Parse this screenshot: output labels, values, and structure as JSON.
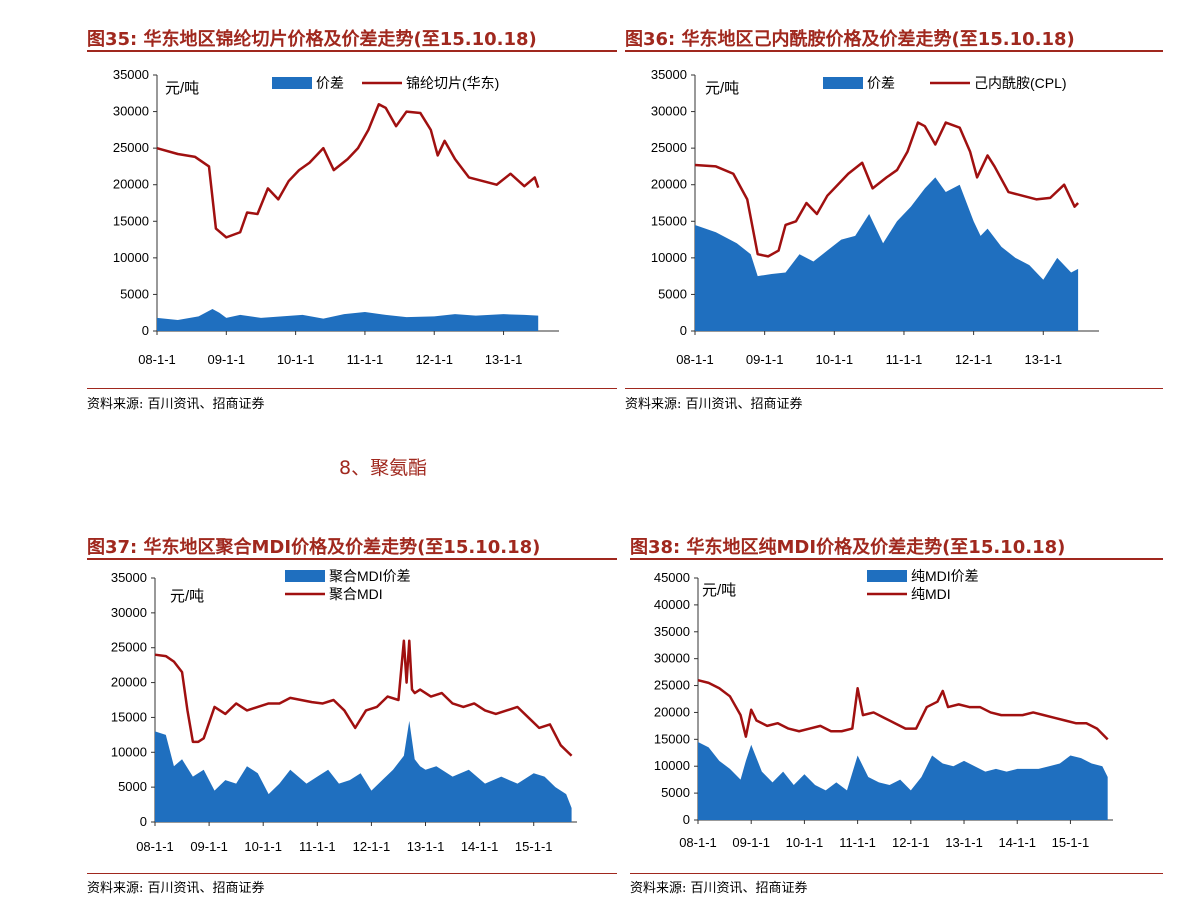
{
  "panels": [
    {
      "id": "fig35",
      "title": "图35:  华东地区锦纶切片价格及价差走势(至15.10.18)",
      "source": "资料来源:  百川资讯、招商证券",
      "unit_label": "元/吨",
      "chart_data": {
        "type": "area",
        "title": "图35:  华东地区锦纶切片价格及价差走势(至15.10.18)",
        "ylabel": "元/吨",
        "ylim": [
          0,
          35000
        ],
        "yticks": [
          0,
          5000,
          10000,
          15000,
          20000,
          25000,
          30000,
          35000
        ],
        "xticks": [
          "08-1-1",
          "09-1-1",
          "10-1-1",
          "11-1-1",
          "12-1-1",
          "13-1-1"
        ],
        "xrange": [
          0,
          5.8
        ],
        "legend": "top",
        "series": [
          {
            "name": "价差",
            "kind": "area",
            "color": "#1f6fbf",
            "x": [
              0,
              0.3,
              0.6,
              0.8,
              0.9,
              1.0,
              1.2,
              1.5,
              1.8,
              2.1,
              2.4,
              2.7,
              3.0,
              3.3,
              3.6,
              4.0,
              4.3,
              4.6,
              5.0,
              5.3,
              5.5
            ],
            "y": [
              1800,
              1500,
              2000,
              3000,
              2500,
              1800,
              2200,
              1800,
              2000,
              2200,
              1700,
              2300,
              2600,
              2200,
              1900,
              2000,
              2300,
              2100,
              2300,
              2200,
              2100
            ]
          },
          {
            "name": "锦纶切片(华东)",
            "kind": "line",
            "color": "#a01010",
            "x": [
              0,
              0.3,
              0.55,
              0.75,
              0.85,
              1.0,
              1.2,
              1.3,
              1.45,
              1.6,
              1.75,
              1.9,
              2.05,
              2.2,
              2.4,
              2.55,
              2.75,
              2.9,
              3.05,
              3.2,
              3.3,
              3.45,
              3.6,
              3.8,
              3.95,
              4.05,
              4.15,
              4.3,
              4.5,
              4.7,
              4.9,
              5.1,
              5.3,
              5.45,
              5.5
            ],
            "y": [
              25000,
              24200,
              23800,
              22500,
              14000,
              12800,
              13500,
              16200,
              16000,
              19500,
              18000,
              20500,
              22000,
              23000,
              25000,
              22000,
              23500,
              25000,
              27500,
              31000,
              30500,
              28000,
              30000,
              29800,
              27500,
              24000,
              26000,
              23500,
              21000,
              20500,
              20000,
              21500,
              19800,
              21000,
              19600
            ]
          }
        ]
      }
    },
    {
      "id": "fig36",
      "title": "图36:  华东地区己内酰胺价格及价差走势(至15.10.18)",
      "source": "资料来源:  百川资讯、招商证券",
      "unit_label": "元/吨",
      "chart_data": {
        "type": "area",
        "title": "图36:  华东地区己内酰胺价格及价差走势(至15.10.18)",
        "ylabel": "元/吨",
        "ylim": [
          0,
          35000
        ],
        "yticks": [
          0,
          5000,
          10000,
          15000,
          20000,
          25000,
          30000,
          35000
        ],
        "xticks": [
          "08-1-1",
          "09-1-1",
          "10-1-1",
          "11-1-1",
          "12-1-1",
          "13-1-1"
        ],
        "xrange": [
          0,
          5.8
        ],
        "legend": "top",
        "series": [
          {
            "name": "价差",
            "kind": "area",
            "color": "#1f6fbf",
            "x": [
              0,
              0.3,
              0.6,
              0.8,
              0.9,
              1.1,
              1.3,
              1.5,
              1.7,
              1.9,
              2.1,
              2.3,
              2.5,
              2.7,
              2.9,
              3.1,
              3.3,
              3.45,
              3.6,
              3.8,
              4.0,
              4.1,
              4.2,
              4.4,
              4.6,
              4.8,
              5.0,
              5.2,
              5.4,
              5.5
            ],
            "y": [
              14500,
              13500,
              12000,
              10500,
              7500,
              7800,
              8000,
              10500,
              9500,
              11000,
              12500,
              13000,
              16000,
              12000,
              15000,
              17000,
              19500,
              21000,
              19000,
              20000,
              15000,
              13000,
              14000,
              11500,
              10000,
              9000,
              7000,
              10000,
              8000,
              8500
            ]
          },
          {
            "name": "己内酰胺(CPL)",
            "kind": "line",
            "color": "#a01010",
            "x": [
              0,
              0.3,
              0.55,
              0.75,
              0.9,
              1.05,
              1.2,
              1.3,
              1.45,
              1.6,
              1.75,
              1.9,
              2.05,
              2.2,
              2.4,
              2.55,
              2.75,
              2.9,
              3.05,
              3.2,
              3.3,
              3.45,
              3.6,
              3.8,
              3.95,
              4.05,
              4.2,
              4.3,
              4.5,
              4.7,
              4.9,
              5.1,
              5.3,
              5.45,
              5.5
            ],
            "y": [
              22700,
              22500,
              21500,
              18000,
              10500,
              10200,
              11000,
              14500,
              15000,
              17500,
              16000,
              18500,
              20000,
              21500,
              23000,
              19500,
              21000,
              22000,
              24500,
              28500,
              28000,
              25500,
              28500,
              27800,
              24500,
              21000,
              24000,
              22500,
              19000,
              18500,
              18000,
              18200,
              20000,
              17000,
              17500
            ]
          }
        ]
      }
    },
    {
      "id": "fig37",
      "title": "图37:  华东地区聚合MDI价格及价差走势(至15.10.18)",
      "source": "资料来源:  百川资讯、招商证券",
      "unit_label": "元/吨",
      "chart_data": {
        "type": "area",
        "title": "图37:  华东地区聚合MDI价格及价差走势(至15.10.18)",
        "ylabel": "元/吨",
        "ylim": [
          0,
          35000
        ],
        "yticks": [
          0,
          5000,
          10000,
          15000,
          20000,
          25000,
          30000,
          35000
        ],
        "xticks": [
          "08-1-1",
          "09-1-1",
          "10-1-1",
          "11-1-1",
          "12-1-1",
          "13-1-1",
          "14-1-1",
          "15-1-1"
        ],
        "xrange": [
          0,
          7.8
        ],
        "legend": "top",
        "series": [
          {
            "name": "聚合MDI价差",
            "kind": "area",
            "color": "#1f6fbf",
            "x": [
              0,
              0.2,
              0.35,
              0.5,
              0.7,
              0.9,
              1.1,
              1.3,
              1.5,
              1.7,
              1.9,
              2.1,
              2.3,
              2.5,
              2.8,
              3.0,
              3.2,
              3.4,
              3.6,
              3.8,
              4.0,
              4.2,
              4.4,
              4.6,
              4.7,
              4.8,
              4.9,
              5.0,
              5.2,
              5.5,
              5.8,
              6.1,
              6.4,
              6.7,
              7.0,
              7.2,
              7.4,
              7.6,
              7.7
            ],
            "y": [
              13000,
              12500,
              8000,
              9000,
              6500,
              7500,
              4500,
              6000,
              5500,
              8000,
              7000,
              4000,
              5500,
              7500,
              5500,
              6500,
              7500,
              5500,
              6000,
              7000,
              4500,
              6000,
              7500,
              9500,
              14500,
              9000,
              8000,
              7500,
              8000,
              6500,
              7500,
              5500,
              6500,
              5500,
              7000,
              6500,
              5000,
              4000,
              2000
            ]
          },
          {
            "name": "聚合MDI",
            "kind": "line",
            "color": "#a01010",
            "x": [
              0,
              0.2,
              0.35,
              0.5,
              0.6,
              0.7,
              0.8,
              0.9,
              1.1,
              1.3,
              1.5,
              1.7,
              1.9,
              2.1,
              2.3,
              2.5,
              2.7,
              2.9,
              3.1,
              3.3,
              3.5,
              3.7,
              3.9,
              4.1,
              4.3,
              4.5,
              4.6,
              4.65,
              4.7,
              4.75,
              4.8,
              4.9,
              5.1,
              5.3,
              5.5,
              5.7,
              5.9,
              6.1,
              6.3,
              6.5,
              6.7,
              6.9,
              7.1,
              7.3,
              7.5,
              7.7
            ],
            "y": [
              24000,
              23800,
              23000,
              21500,
              16000,
              11500,
              11500,
              12000,
              16500,
              15500,
              17000,
              16000,
              16500,
              17000,
              17000,
              17800,
              17500,
              17200,
              17000,
              17500,
              16000,
              13500,
              16000,
              16500,
              18000,
              17500,
              26000,
              20000,
              26000,
              19000,
              18500,
              19000,
              18000,
              18500,
              17000,
              16500,
              17000,
              16000,
              15500,
              16000,
              16500,
              15000,
              13500,
              14000,
              11000,
              9500
            ]
          }
        ]
      }
    },
    {
      "id": "fig38",
      "title": "图38:  华东地区纯MDI价格及价差走势(至15.10.18)",
      "source": "资料来源:  百川资讯、招商证券",
      "unit_label": "元/吨",
      "chart_data": {
        "type": "area",
        "title": "图38:  华东地区纯MDI价格及价差走势(至15.10.18)",
        "ylabel": "元/吨",
        "ylim": [
          0,
          45000
        ],
        "yticks": [
          0,
          5000,
          10000,
          15000,
          20000,
          25000,
          30000,
          35000,
          40000,
          45000
        ],
        "xticks": [
          "08-1-1",
          "09-1-1",
          "10-1-1",
          "11-1-1",
          "12-1-1",
          "13-1-1",
          "14-1-1",
          "15-1-1"
        ],
        "xrange": [
          0,
          7.8
        ],
        "legend": "top",
        "series": [
          {
            "name": "纯MDI价差",
            "kind": "area",
            "color": "#1f6fbf",
            "x": [
              0,
              0.2,
              0.4,
              0.6,
              0.8,
              0.9,
              1.0,
              1.2,
              1.4,
              1.6,
              1.8,
              2.0,
              2.2,
              2.4,
              2.6,
              2.8,
              3.0,
              3.2,
              3.4,
              3.6,
              3.8,
              4.0,
              4.2,
              4.4,
              4.6,
              4.8,
              5.0,
              5.2,
              5.4,
              5.6,
              5.8,
              6.0,
              6.2,
              6.4,
              6.6,
              6.8,
              7.0,
              7.2,
              7.4,
              7.6,
              7.7
            ],
            "y": [
              14500,
              13500,
              11000,
              9500,
              7500,
              11000,
              14000,
              9000,
              7000,
              9000,
              6500,
              8500,
              6500,
              5500,
              7000,
              5500,
              12000,
              8000,
              7000,
              6500,
              7500,
              5500,
              8000,
              12000,
              10500,
              10000,
              11000,
              10000,
              9000,
              9500,
              9000,
              9500,
              9500,
              9500,
              10000,
              10500,
              12000,
              11500,
              10500,
              10000,
              8000
            ]
          },
          {
            "name": "纯MDI",
            "kind": "line",
            "color": "#a01010",
            "x": [
              0,
              0.2,
              0.4,
              0.6,
              0.8,
              0.9,
              1.0,
              1.1,
              1.3,
              1.5,
              1.7,
              1.9,
              2.1,
              2.3,
              2.5,
              2.7,
              2.9,
              3.0,
              3.1,
              3.3,
              3.5,
              3.7,
              3.9,
              4.1,
              4.3,
              4.5,
              4.6,
              4.7,
              4.9,
              5.1,
              5.3,
              5.5,
              5.7,
              5.9,
              6.1,
              6.3,
              6.5,
              6.7,
              6.9,
              7.1,
              7.3,
              7.5,
              7.7
            ],
            "y": [
              26000,
              25500,
              24500,
              23000,
              19500,
              15500,
              20500,
              18500,
              17500,
              18000,
              17000,
              16500,
              17000,
              17500,
              16500,
              16500,
              17000,
              24500,
              19500,
              20000,
              19000,
              18000,
              17000,
              17000,
              21000,
              22000,
              24000,
              21000,
              21500,
              21000,
              21000,
              20000,
              19500,
              19500,
              19500,
              20000,
              19500,
              19000,
              18500,
              18000,
              18000,
              17000,
              15000
            ]
          }
        ]
      }
    }
  ],
  "section_heading": "8、聚氨酯"
}
